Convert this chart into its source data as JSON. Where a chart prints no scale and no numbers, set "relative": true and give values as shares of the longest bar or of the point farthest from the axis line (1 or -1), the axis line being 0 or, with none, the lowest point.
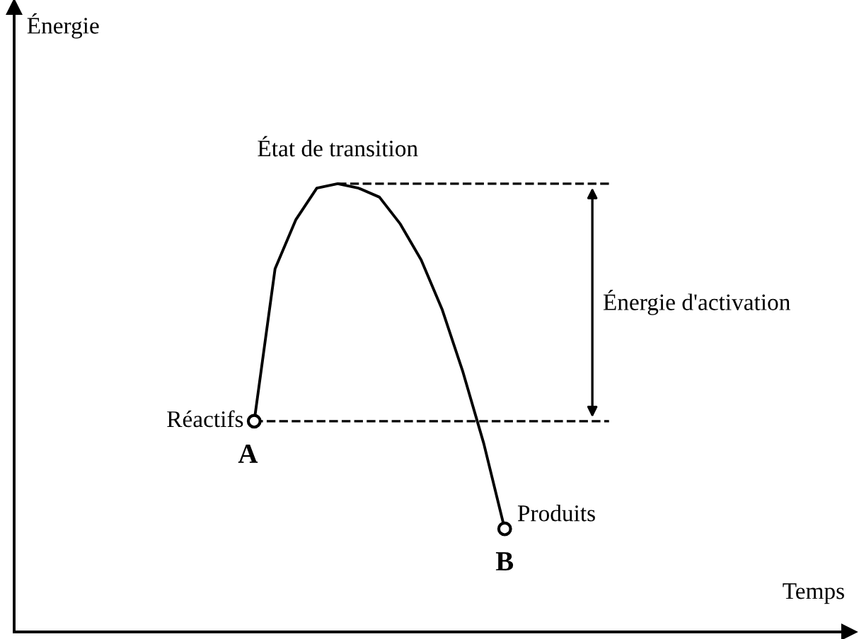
{
  "chart_data": {
    "type": "line",
    "relative": true,
    "xlabel": "Temps",
    "categories": [
      null,
      null,
      null,
      null,
      null,
      null,
      null,
      null,
      null,
      null,
      null,
      null,
      null,
      null,
      null,
      null,
      null,
      null,
      null,
      null,
      null,
      null,
      null,
      null,
      null,
      null,
      null,
      null,
      null,
      null,
      null,
      null,
      null,
      null,
      null,
      null,
      null,
      null,
      null,
      null
    ],
    "series": [
      {
        "color": "#000000",
        "values": [
          null,
          null,
          null,
          null,
          null,
          null,
          null,
          null,
          null,
          null,
          null,
          0.47,
          0.81,
          0.92,
          0.99,
          1,
          0.99,
          0.97,
          0.91,
          0.83,
          0.72,
          0.58,
          0.42,
          0.23,
          null,
          null,
          null,
          null,
          null,
          null,
          null,
          null,
          null,
          null,
          null,
          null,
          null,
          null,
          null,
          null
        ]
      }
    ],
    "ref_lines": [
      {
        "axis": "y",
        "value": 1,
        "line_style": "dashed",
        "color": "#000000"
      },
      {
        "axis": "y",
        "value": 0.47,
        "line_style": "dashed",
        "color": "#000000"
      }
    ],
    "annotations": [
      "État de transition",
      "Énergie d'activation",
      "Réactifs",
      "A",
      "Produits",
      "B",
      "Énergie"
    ],
    "line_style": "solid",
    "legend": false
  }
}
